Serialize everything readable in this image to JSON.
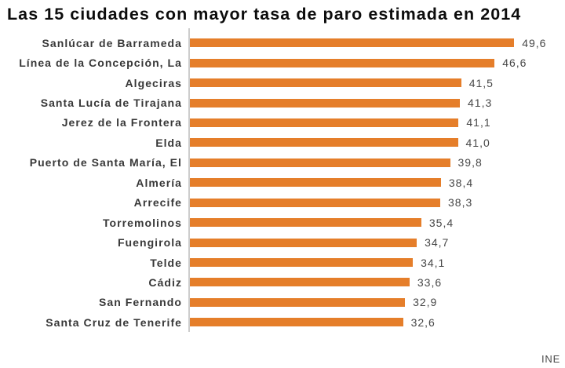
{
  "title": "Las 15 ciudades con mayor tasa de paro estimada en 2014",
  "source": "INE",
  "chart_data": {
    "type": "bar",
    "orientation": "horizontal",
    "title": "Las 15 ciudades con mayor tasa de paro estimada en 2014",
    "categories": [
      "Sanlúcar de Barrameda",
      "Línea de la Concepción, La",
      "Algeciras",
      "Santa Lucía de Tirajana",
      "Jerez de la Frontera",
      "Elda",
      "Puerto de Santa María, El",
      "Almería",
      "Arrecife",
      "Torremolinos",
      "Fuengirola",
      "Telde",
      "Cádiz",
      "San Fernando",
      "Santa Cruz de Tenerife"
    ],
    "values": [
      49.6,
      46.6,
      41.5,
      41.3,
      41.1,
      41.0,
      39.8,
      38.4,
      38.3,
      35.4,
      34.7,
      34.1,
      33.6,
      32.9,
      32.6
    ],
    "value_labels": [
      "49,6",
      "46,6",
      "41,5",
      "41,3",
      "41,1",
      "41,0",
      "39,8",
      "38,4",
      "38,3",
      "35,4",
      "34,7",
      "34,1",
      "33,6",
      "32,9",
      "32,6"
    ],
    "xlabel": "",
    "ylabel": "",
    "xlim": [
      0,
      50
    ],
    "grid": false,
    "legend": false,
    "bar_color": "#e57e2a",
    "axis_color": "#cdcdcd"
  }
}
